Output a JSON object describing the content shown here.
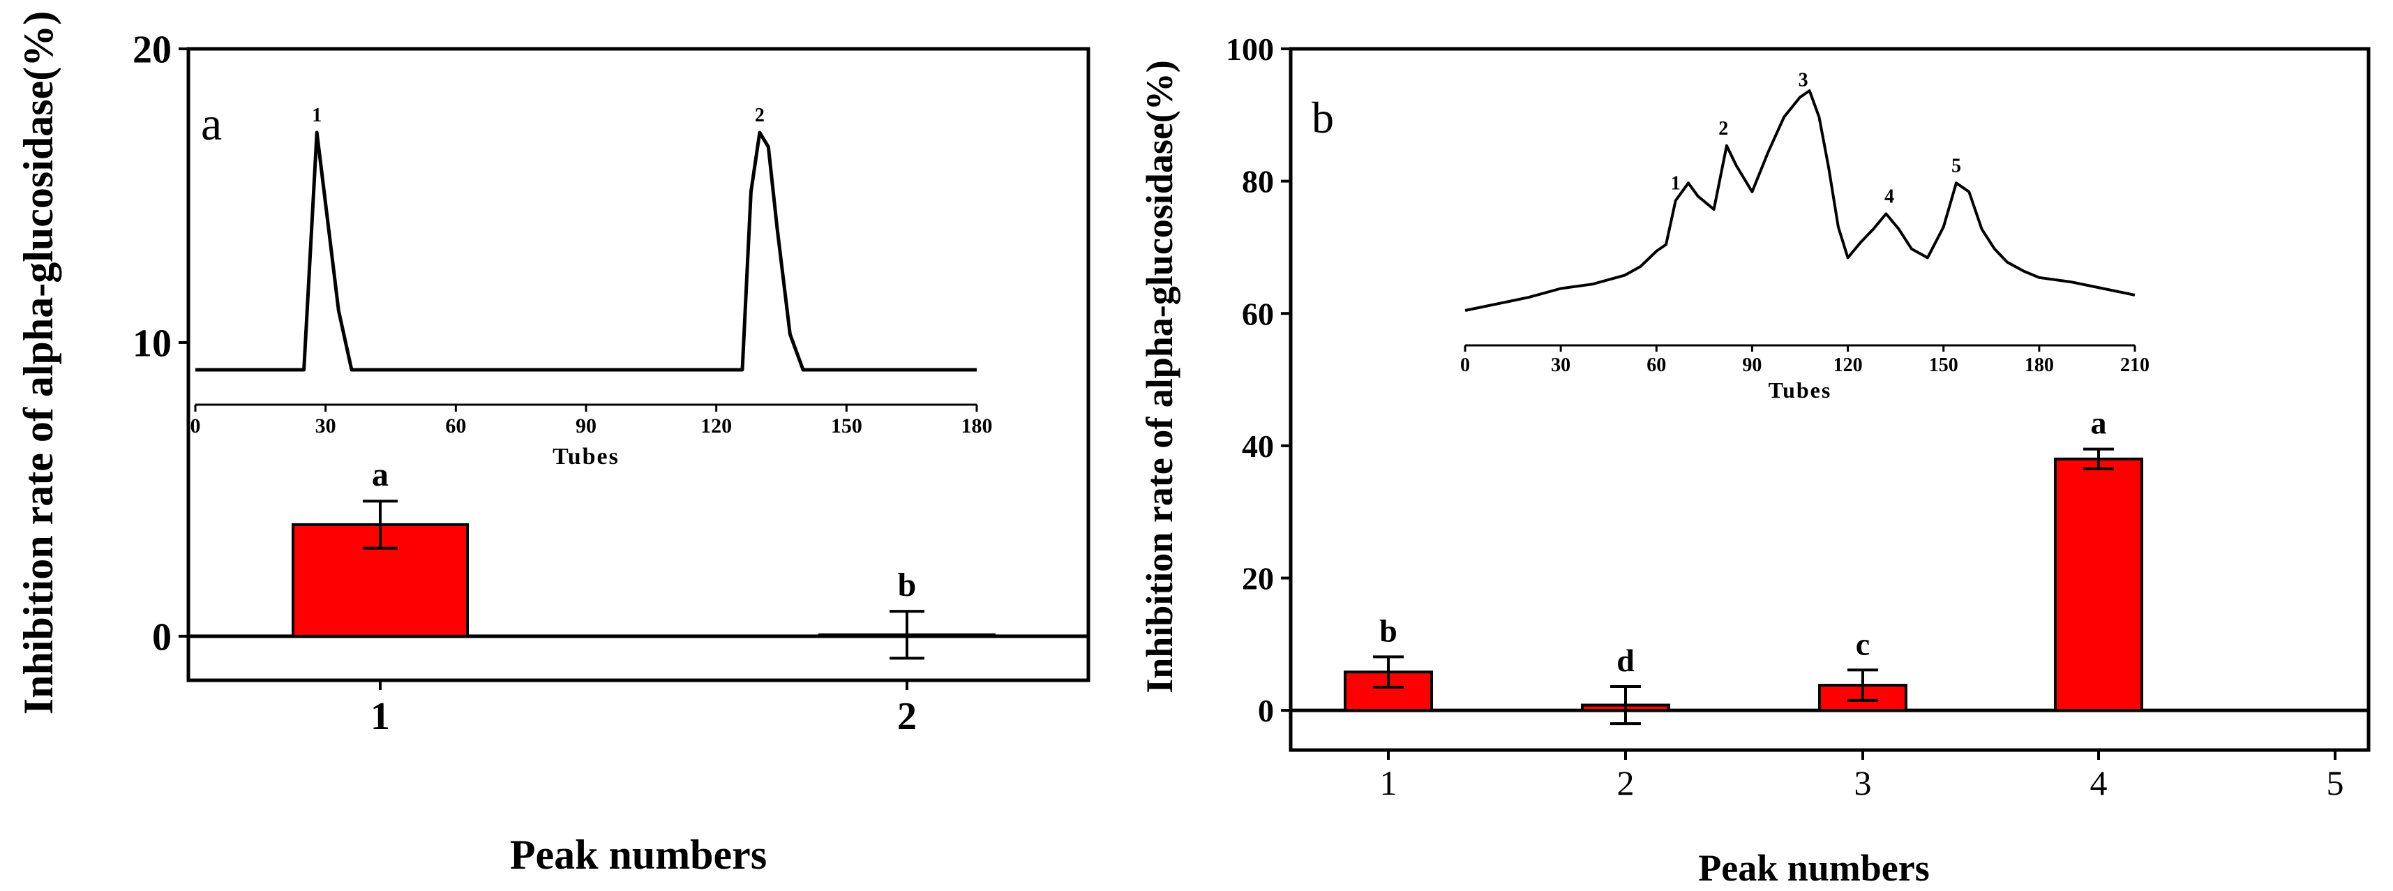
{
  "chart_data": [
    {
      "id": "a",
      "type": "bar",
      "panel_label": "a",
      "xlabel": "Peak numbers",
      "ylabel": "Inhibition rate of alpha-glucosidase(%)",
      "ylim": [
        -1.5,
        20
      ],
      "yticks": [
        0,
        10,
        20
      ],
      "categories": [
        "1",
        "2"
      ],
      "values": [
        3.8,
        0.05
      ],
      "errors": [
        0.8,
        0.8
      ],
      "letters": [
        "a",
        "b"
      ],
      "bar_color": "#ff0000",
      "inset": {
        "type": "line",
        "xlabel": "Tubes",
        "xlim": [
          0,
          180
        ],
        "xticks": [
          "0",
          "30",
          "60",
          "90",
          "120",
          "150",
          "180"
        ],
        "x": [
          0,
          25,
          28,
          31,
          33,
          36,
          124,
          126,
          128,
          130,
          132,
          134,
          137,
          140,
          180
        ],
        "y": [
          0,
          0,
          1.0,
          0.55,
          0.25,
          0,
          0,
          0,
          0.75,
          1.0,
          0.94,
          0.6,
          0.15,
          0,
          0
        ],
        "peak_labels": [
          {
            "x": 28,
            "label": "1"
          },
          {
            "x": 130,
            "label": "2"
          }
        ]
      }
    },
    {
      "id": "b",
      "type": "bar",
      "panel_label": "b",
      "xlabel": "Peak numbers",
      "ylabel": "Inhibition rate of alpha-glucosidase(%)",
      "ylim": [
        -6,
        100
      ],
      "yticks": [
        0,
        20,
        40,
        60,
        80,
        100
      ],
      "categories": [
        "1",
        "2",
        "3",
        "4",
        "5"
      ],
      "values": [
        5.8,
        0.8,
        3.8,
        38.0,
        null
      ],
      "errors": [
        2.3,
        2.8,
        2.3,
        1.5,
        null
      ],
      "letters": [
        "b",
        "d",
        "c",
        "a",
        ""
      ],
      "bar_color": "#ff0000",
      "inset": {
        "type": "line",
        "xlabel": "Tubes",
        "xlim": [
          0,
          210
        ],
        "xticks": [
          "0",
          "30",
          "60",
          "90",
          "120",
          "150",
          "180",
          "210"
        ],
        "x": [
          0,
          10,
          20,
          30,
          40,
          50,
          55,
          60,
          63,
          66,
          70,
          73,
          78,
          82,
          85,
          90,
          95,
          100,
          105,
          108,
          111,
          114,
          117,
          120,
          124,
          128,
          132,
          136,
          140,
          145,
          150,
          154,
          158,
          162,
          166,
          170,
          175,
          180,
          190,
          200,
          210
        ],
        "y": [
          0,
          0.03,
          0.06,
          0.1,
          0.12,
          0.16,
          0.2,
          0.27,
          0.3,
          0.5,
          0.58,
          0.52,
          0.46,
          0.75,
          0.66,
          0.54,
          0.72,
          0.88,
          0.97,
          1.0,
          0.88,
          0.65,
          0.38,
          0.24,
          0.31,
          0.37,
          0.44,
          0.37,
          0.28,
          0.24,
          0.38,
          0.58,
          0.54,
          0.37,
          0.28,
          0.22,
          0.18,
          0.15,
          0.13,
          0.1,
          0.07
        ],
        "peak_labels": [
          {
            "x": 66,
            "label": "1"
          },
          {
            "x": 81,
            "label": "2"
          },
          {
            "x": 106,
            "label": "3"
          },
          {
            "x": 133,
            "label": "4"
          },
          {
            "x": 154,
            "label": "5"
          }
        ]
      }
    }
  ]
}
